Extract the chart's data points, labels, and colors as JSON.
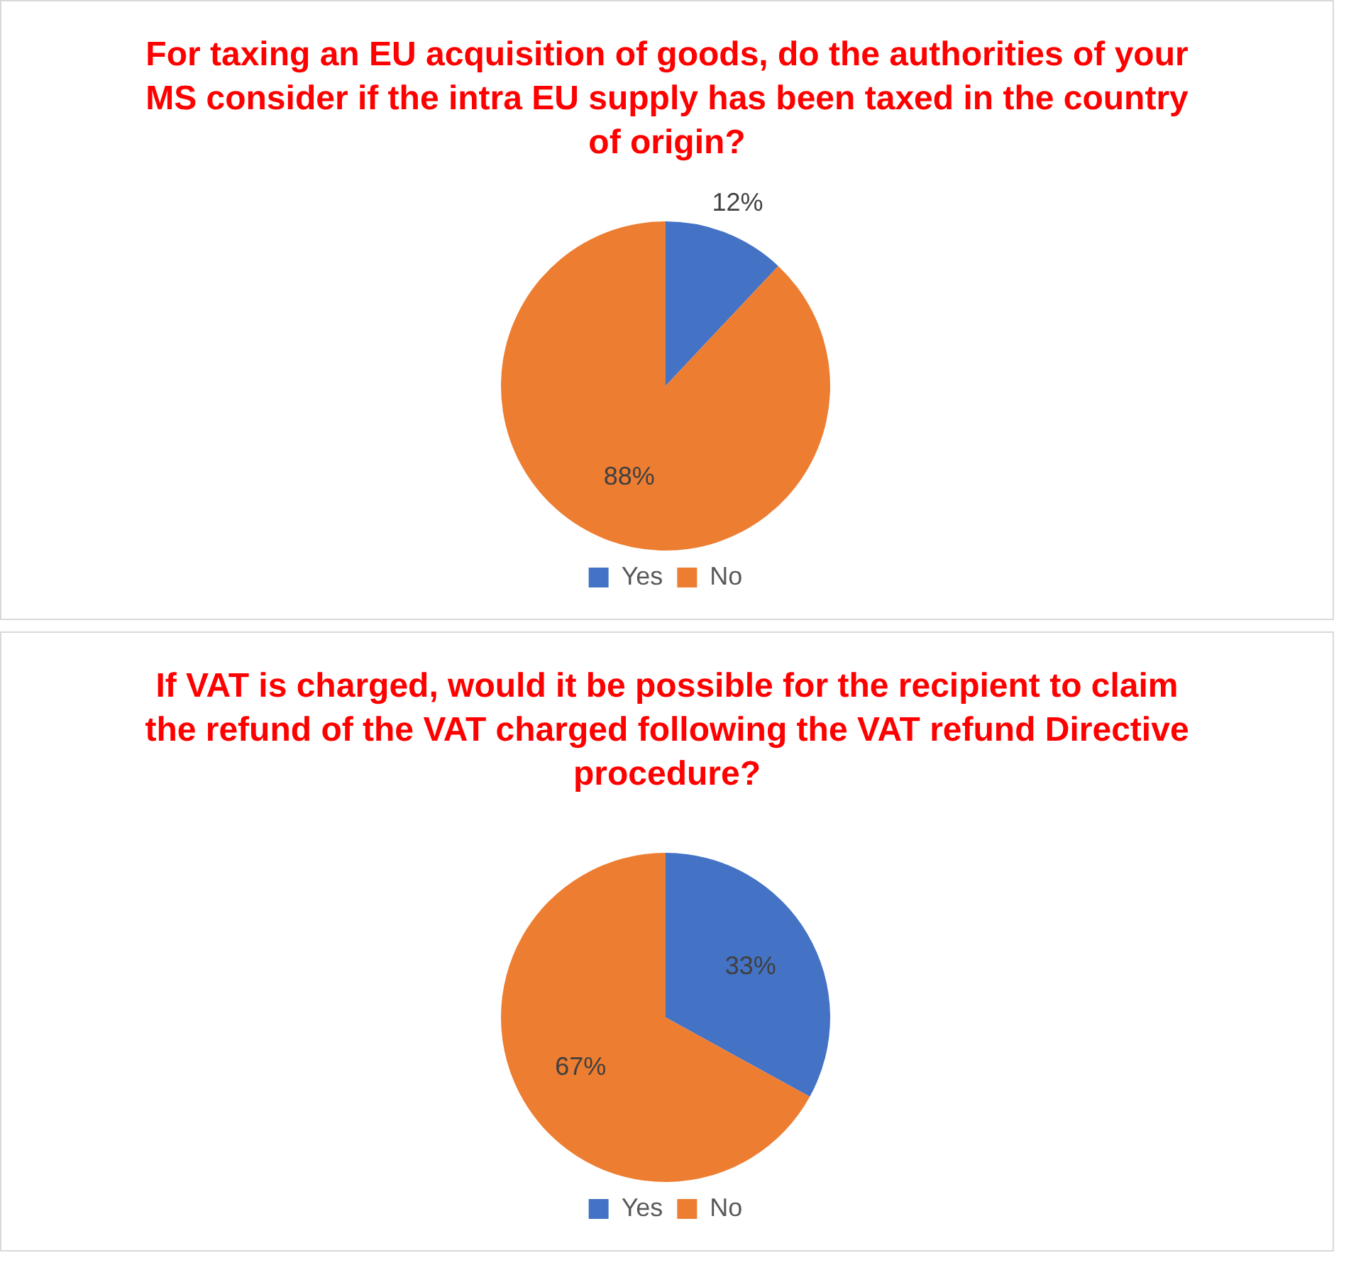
{
  "chart_data": [
    {
      "type": "pie",
      "title": "For taxing an EU acquisition of goods, do the authorities of your MS consider if the intra EU supply has been taxed in the country of origin?",
      "categories": [
        "Yes",
        "No"
      ],
      "values": [
        12,
        88
      ],
      "colors": [
        "#4472c4",
        "#ed7d31"
      ],
      "value_labels": [
        "12%",
        "88%"
      ],
      "legend": "bottom"
    },
    {
      "type": "pie",
      "title": "If VAT is charged, would it be possible for the recipient to claim the refund of the VAT charged following the VAT refund Directive procedure?",
      "categories": [
        "Yes",
        "No"
      ],
      "values": [
        33,
        67
      ],
      "colors": [
        "#4472c4",
        "#ed7d31"
      ],
      "value_labels": [
        "33%",
        "67%"
      ],
      "legend": "bottom"
    }
  ]
}
